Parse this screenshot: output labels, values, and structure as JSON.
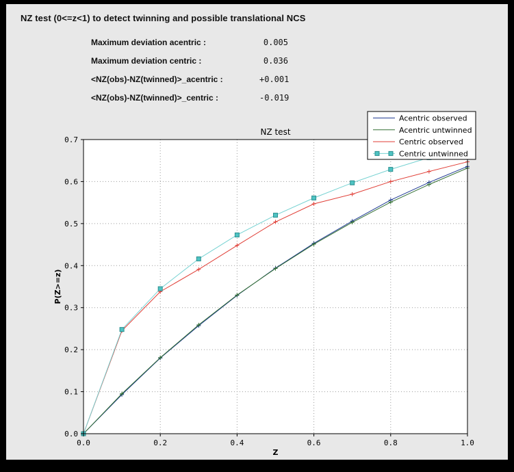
{
  "window": {
    "frame_color": "#000000",
    "panel_color": "#e8e8e8"
  },
  "header": {
    "title": "NZ test (0<=z<1) to detect twinning and possible translational NCS"
  },
  "stats": [
    {
      "label": "Maximum deviation acentric :",
      "value": "0.005"
    },
    {
      "label": "Maximum deviation centric :",
      "value": "0.036"
    },
    {
      "label": "<NZ(obs)-NZ(twinned)>_acentric :",
      "value": "+0.001"
    },
    {
      "label": "<NZ(obs)-NZ(twinned)>_centric :",
      "value": "-0.019"
    }
  ],
  "chart_data": {
    "type": "line",
    "title": "NZ test",
    "xlabel": "Z",
    "ylabel": "P(Z>=z)",
    "xlim": [
      0.0,
      1.0
    ],
    "ylim": [
      0.0,
      0.7
    ],
    "xticks": [
      0.0,
      0.2,
      0.4,
      0.6,
      0.8,
      1.0
    ],
    "yticks": [
      0.0,
      0.1,
      0.2,
      0.3,
      0.4,
      0.5,
      0.6,
      0.7
    ],
    "grid": true,
    "grid_style": "dotted",
    "legend_position": "upper right",
    "x": [
      0.0,
      0.1,
      0.2,
      0.3,
      0.4,
      0.5,
      0.6,
      0.7,
      0.8,
      0.9,
      1.0
    ],
    "series": [
      {
        "name": "Acentric observed",
        "color": "#1f3a93",
        "marker": "plus",
        "values": [
          0.0,
          0.093,
          0.18,
          0.257,
          0.329,
          0.394,
          0.453,
          0.506,
          0.556,
          0.598,
          0.636
        ]
      },
      {
        "name": "Acentric untwinned",
        "color": "#336f33",
        "marker": "plus",
        "values": [
          0.0,
          0.095,
          0.181,
          0.259,
          0.33,
          0.393,
          0.451,
          0.503,
          0.551,
          0.593,
          0.632
        ]
      },
      {
        "name": "Centric observed",
        "color": "#e03c34",
        "marker": "plus",
        "values": [
          0.0,
          0.245,
          0.338,
          0.391,
          0.448,
          0.504,
          0.547,
          0.57,
          0.6,
          0.624,
          0.647
        ]
      },
      {
        "name": "Centric untwinned",
        "color": "#76d2d2",
        "marker": "square",
        "marker_fill": "#4fc3c3",
        "marker_edge": "#2a8f8f",
        "values": [
          0.0,
          0.248,
          0.345,
          0.416,
          0.473,
          0.52,
          0.561,
          0.597,
          0.629,
          0.657,
          0.683
        ]
      }
    ]
  }
}
